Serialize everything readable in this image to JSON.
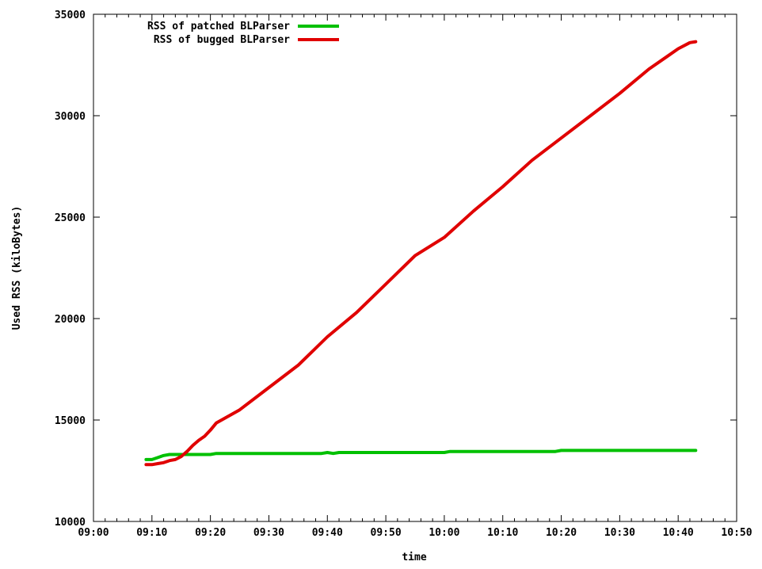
{
  "chart_data": {
    "type": "line",
    "title": "",
    "xlabel": "time",
    "ylabel": "Used RSS (kiloBytes)",
    "x_ticks": [
      "09:00",
      "09:10",
      "09:20",
      "09:30",
      "09:40",
      "09:50",
      "10:00",
      "10:10",
      "10:20",
      "10:30",
      "10:40",
      "10:50"
    ],
    "x_range_minutes": [
      0,
      110
    ],
    "y_ticks": [
      10000,
      15000,
      20000,
      25000,
      30000,
      35000
    ],
    "ylim": [
      10000,
      35000
    ],
    "grid": false,
    "legend_position": "top-left",
    "series": [
      {
        "name": "RSS of patched BLParser",
        "color": "#00c000",
        "points": [
          [
            "09:09",
            13050
          ],
          [
            "09:10",
            13050
          ],
          [
            "09:11",
            13150
          ],
          [
            "09:12",
            13250
          ],
          [
            "09:13",
            13300
          ],
          [
            "09:15",
            13300
          ],
          [
            "09:20",
            13300
          ],
          [
            "09:21",
            13350
          ],
          [
            "09:30",
            13350
          ],
          [
            "09:39",
            13350
          ],
          [
            "09:40",
            13400
          ],
          [
            "09:41",
            13350
          ],
          [
            "09:42",
            13400
          ],
          [
            "09:50",
            13400
          ],
          [
            "10:00",
            13400
          ],
          [
            "10:01",
            13450
          ],
          [
            "10:10",
            13450
          ],
          [
            "10:19",
            13450
          ],
          [
            "10:20",
            13500
          ],
          [
            "10:30",
            13500
          ],
          [
            "10:43",
            13500
          ]
        ]
      },
      {
        "name": "RSS of bugged BLParser",
        "color": "#e00000",
        "points": [
          [
            "09:09",
            12800
          ],
          [
            "09:10",
            12800
          ],
          [
            "09:11",
            12850
          ],
          [
            "09:12",
            12900
          ],
          [
            "09:13",
            13000
          ],
          [
            "09:14",
            13050
          ],
          [
            "09:15",
            13200
          ],
          [
            "09:16",
            13450
          ],
          [
            "09:17",
            13750
          ],
          [
            "09:18",
            14000
          ],
          [
            "09:19",
            14200
          ],
          [
            "09:20",
            14500
          ],
          [
            "09:21",
            14850
          ],
          [
            "09:25",
            15500
          ],
          [
            "09:30",
            16600
          ],
          [
            "09:35",
            17700
          ],
          [
            "09:40",
            19100
          ],
          [
            "09:45",
            20300
          ],
          [
            "09:50",
            21700
          ],
          [
            "09:55",
            23100
          ],
          [
            "10:00",
            24000
          ],
          [
            "10:05",
            25300
          ],
          [
            "10:10",
            26500
          ],
          [
            "10:15",
            27800
          ],
          [
            "10:20",
            28900
          ],
          [
            "10:25",
            30000
          ],
          [
            "10:30",
            31100
          ],
          [
            "10:35",
            32300
          ],
          [
            "10:38",
            32900
          ],
          [
            "10:40",
            33300
          ],
          [
            "10:42",
            33600
          ],
          [
            "10:43",
            33650
          ]
        ]
      }
    ]
  }
}
